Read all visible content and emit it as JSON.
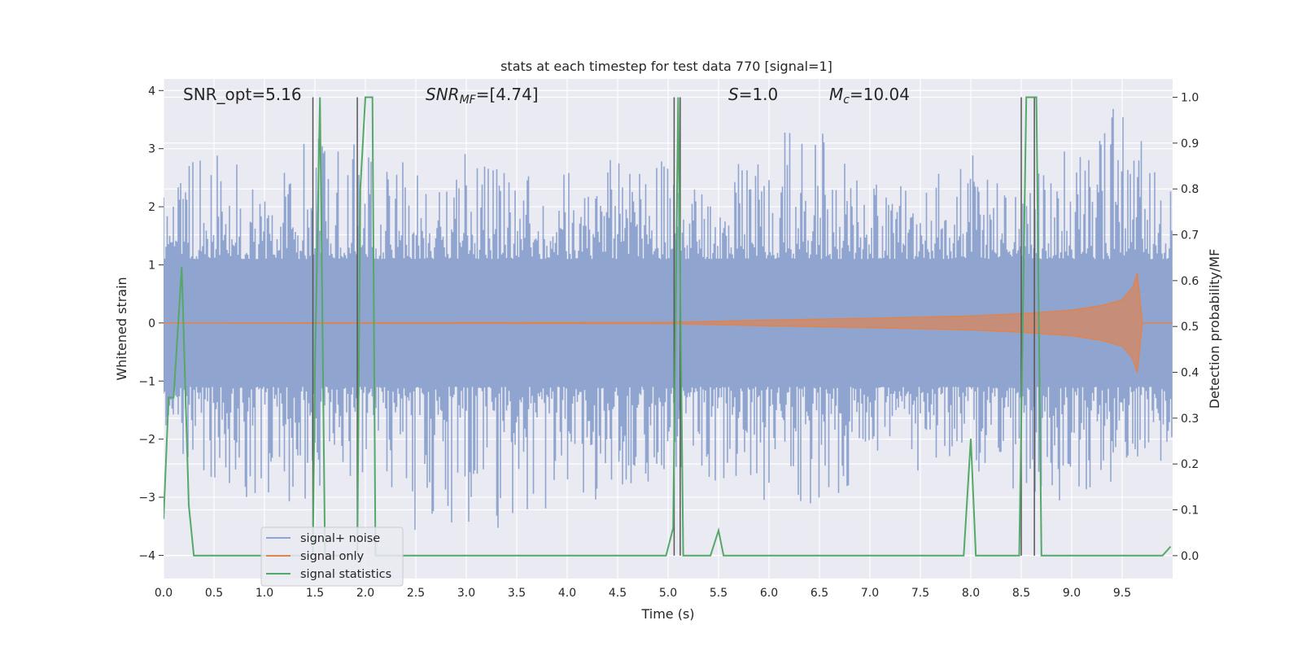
{
  "chart_data": {
    "type": "line",
    "title": "stats at each timestep for test data 770 [signal=1]",
    "xlabel": "Time (s)",
    "ylabel_left": "Whitened strain",
    "ylabel_right": "Detection probability/MF",
    "xlim": [
      0.0,
      10.0
    ],
    "ylim_left": [
      -4.4,
      4.2
    ],
    "ylim_right": [
      -0.05,
      1.04
    ],
    "x_ticks": [
      "0.0",
      "0.5",
      "1.0",
      "1.5",
      "2.0",
      "2.5",
      "3.0",
      "3.5",
      "4.0",
      "4.5",
      "5.0",
      "5.5",
      "6.0",
      "6.5",
      "7.0",
      "7.5",
      "8.0",
      "8.5",
      "9.0",
      "9.5"
    ],
    "y_left_ticks": [
      "4",
      "3",
      "2",
      "1",
      "0",
      "−1",
      "−2",
      "−3",
      "−4"
    ],
    "y_right_ticks": [
      "1.0",
      "0.9",
      "0.8",
      "0.7",
      "0.6",
      "0.5",
      "0.4",
      "0.3",
      "0.2",
      "0.1",
      "0.0"
    ],
    "grid": true,
    "legend_position": "lower-left",
    "annotations": {
      "snr_opt": "SNR_opt=5.16",
      "snr_mf_sym": "SNR",
      "snr_mf_sub": "MF",
      "snr_mf_val": "=[4.74]",
      "s_sym": "S",
      "s_val": "=1.0",
      "mc_sym": "M",
      "mc_sub": "c",
      "mc_val": "=10.04"
    },
    "series": [
      {
        "name": "signal+ noise",
        "color": "#8fa5cf",
        "axis": "left",
        "x": [
          0.0,
          0.5,
          1.0,
          1.5,
          2.0,
          2.5,
          3.0,
          3.5,
          4.0,
          4.5,
          5.0,
          5.5,
          6.0,
          6.5,
          7.0,
          7.5,
          8.0,
          8.5,
          9.0,
          9.5,
          10.0
        ],
        "upper": [
          2.4,
          3.2,
          2.5,
          3.3,
          3.3,
          2.6,
          3.0,
          2.6,
          2.6,
          2.9,
          3.0,
          2.3,
          3.5,
          3.3,
          2.7,
          2.4,
          3.0,
          2.5,
          3.2,
          3.9,
          2.5
        ],
        "lower": [
          -2.2,
          -2.7,
          -3.2,
          -3.0,
          -2.6,
          -3.9,
          -3.5,
          -3.8,
          -2.9,
          -3.3,
          -2.6,
          -2.8,
          -3.1,
          -3.3,
          -2.5,
          -2.6,
          -2.5,
          -3.0,
          -3.2,
          -2.6,
          -2.4
        ]
      },
      {
        "name": "signal only",
        "color": "#dd8452",
        "axis": "left",
        "x": [
          0.0,
          5.0,
          6.0,
          7.0,
          8.0,
          8.5,
          9.0,
          9.3,
          9.5,
          9.6,
          9.65,
          9.7,
          10.0
        ],
        "amplitude": [
          0.0,
          0.01,
          0.05,
          0.08,
          0.12,
          0.16,
          0.22,
          0.3,
          0.4,
          0.6,
          0.85,
          0.0,
          0.0
        ]
      },
      {
        "name": "signal statistics",
        "color": "#55a868",
        "axis": "right",
        "x": [
          0.0,
          0.05,
          0.1,
          0.18,
          0.25,
          0.3,
          1.48,
          1.5,
          1.55,
          1.6,
          1.92,
          1.95,
          2.0,
          2.07,
          2.1,
          4.98,
          5.05,
          5.1,
          5.15,
          5.42,
          5.5,
          5.55,
          7.93,
          8.0,
          8.05,
          8.48,
          8.55,
          8.65,
          8.7,
          9.9,
          9.98
        ],
        "values": [
          0.08,
          0.345,
          0.345,
          0.63,
          0.11,
          0.0,
          0.0,
          0.4,
          1.0,
          0.0,
          0.0,
          0.8,
          1.0,
          1.0,
          0.0,
          0.0,
          0.06,
          1.0,
          0.0,
          0.0,
          0.055,
          0.0,
          0.0,
          0.255,
          0.0,
          0.0,
          1.0,
          1.0,
          0.0,
          0.0,
          0.02
        ]
      }
    ],
    "markers": {
      "color": "#555555",
      "x": [
        1.48,
        1.92,
        5.06,
        5.12,
        8.5,
        8.63
      ],
      "y_range": [
        0.0,
        1.0
      ]
    }
  }
}
